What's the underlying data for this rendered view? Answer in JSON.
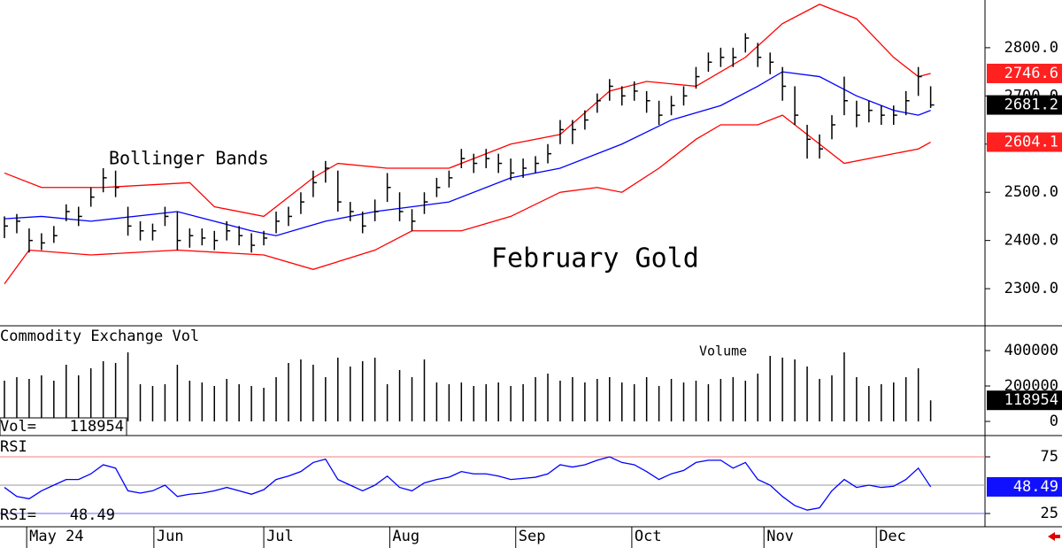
{
  "chart_data": [
    {
      "type": "ohlc",
      "title": "February Gold",
      "annotation": "Bollinger Bands",
      "x": [
        0,
        1,
        2,
        3,
        4,
        5,
        6,
        7,
        8,
        9,
        10,
        11,
        12,
        13,
        14,
        15,
        16,
        17,
        18,
        19,
        20,
        21,
        22,
        23,
        24,
        25,
        26,
        27,
        28,
        29,
        30,
        31,
        32,
        33,
        34,
        35,
        36,
        37,
        38,
        39,
        40,
        41,
        42,
        43,
        44,
        45,
        46,
        47,
        48,
        49,
        50,
        51,
        52,
        53,
        54,
        55,
        56,
        57,
        58,
        59,
        60,
        61,
        62,
        63,
        64,
        65,
        66,
        67,
        68,
        69,
        70,
        71,
        72,
        73,
        74,
        75
      ],
      "high": [
        2450,
        2455,
        2425,
        2415,
        2430,
        2475,
        2470,
        2510,
        2550,
        2545,
        2470,
        2440,
        2435,
        2470,
        2460,
        2425,
        2425,
        2420,
        2440,
        2430,
        2415,
        2420,
        2460,
        2470,
        2500,
        2545,
        2565,
        2545,
        2480,
        2460,
        2485,
        2540,
        2500,
        2465,
        2500,
        2530,
        2545,
        2590,
        2580,
        2590,
        2580,
        2570,
        2570,
        2575,
        2600,
        2650,
        2650,
        2670,
        2705,
        2735,
        2720,
        2730,
        2710,
        2690,
        2700,
        2720,
        2760,
        2790,
        2800,
        2800,
        2830,
        2810,
        2790,
        2760,
        2720,
        2640,
        2620,
        2660,
        2740,
        2690,
        2690,
        2680,
        2680,
        2710,
        2760,
        2720
      ],
      "low": [
        2405,
        2415,
        2375,
        2380,
        2395,
        2440,
        2430,
        2470,
        2500,
        2490,
        2410,
        2400,
        2400,
        2430,
        2380,
        2385,
        2390,
        2380,
        2400,
        2390,
        2375,
        2390,
        2415,
        2430,
        2455,
        2490,
        2520,
        2460,
        2440,
        2415,
        2440,
        2480,
        2440,
        2420,
        2455,
        2490,
        2510,
        2550,
        2540,
        2550,
        2540,
        2525,
        2530,
        2540,
        2560,
        2600,
        2600,
        2630,
        2665,
        2690,
        2680,
        2690,
        2665,
        2640,
        2660,
        2680,
        2715,
        2750,
        2760,
        2760,
        2790,
        2760,
        2745,
        2690,
        2640,
        2570,
        2570,
        2610,
        2660,
        2635,
        2645,
        2640,
        2640,
        2660,
        2700,
        2675
      ],
      "close": [
        2430,
        2440,
        2400,
        2395,
        2410,
        2460,
        2450,
        2490,
        2530,
        2510,
        2430,
        2420,
        2420,
        2450,
        2400,
        2410,
        2405,
        2400,
        2420,
        2410,
        2390,
        2405,
        2440,
        2450,
        2480,
        2520,
        2550,
        2480,
        2460,
        2430,
        2460,
        2510,
        2460,
        2440,
        2480,
        2510,
        2530,
        2570,
        2560,
        2570,
        2560,
        2540,
        2550,
        2560,
        2580,
        2630,
        2630,
        2650,
        2690,
        2720,
        2700,
        2710,
        2690,
        2660,
        2680,
        2700,
        2740,
        2770,
        2780,
        2780,
        2820,
        2780,
        2770,
        2720,
        2660,
        2610,
        2590,
        2640,
        2690,
        2660,
        2670,
        2660,
        2660,
        2690,
        2740,
        2681.2
      ],
      "color": "#000000",
      "series": [
        {
          "color": "#ff0000",
          "x": [
            0,
            3,
            8,
            15,
            17,
            21,
            25,
            27,
            31,
            36,
            41,
            45,
            49,
            52,
            56,
            60,
            63,
            66,
            69,
            72,
            74,
            75
          ],
          "values": [
            2540,
            2510,
            2510,
            2520,
            2470,
            2450,
            2530,
            2560,
            2550,
            2550,
            2600,
            2620,
            2710,
            2730,
            2720,
            2780,
            2850,
            2890,
            2860,
            2780,
            2740,
            2746.6
          ]
        },
        {
          "color": "#0000ff",
          "x": [
            0,
            3,
            7,
            14,
            20,
            22,
            26,
            30,
            36,
            41,
            45,
            50,
            54,
            58,
            61,
            63,
            66,
            69,
            72,
            74,
            75
          ],
          "values": [
            2445,
            2450,
            2440,
            2460,
            2420,
            2410,
            2440,
            2460,
            2480,
            2530,
            2550,
            2600,
            2650,
            2680,
            2720,
            2750,
            2740,
            2700,
            2670,
            2660,
            2670
          ]
        },
        {
          "color": "#ff0000",
          "x": [
            0,
            2,
            7,
            14,
            21,
            25,
            30,
            33,
            37,
            41,
            45,
            48,
            50,
            53,
            56,
            58,
            61,
            63,
            66,
            68,
            72,
            74,
            75
          ],
          "values": [
            2310,
            2380,
            2370,
            2380,
            2370,
            2340,
            2380,
            2420,
            2420,
            2450,
            2500,
            2510,
            2500,
            2550,
            2610,
            2640,
            2640,
            2660,
            2600,
            2560,
            2580,
            2590,
            2604.1
          ]
        }
      ],
      "xlim": [
        -0.36,
        79.4
      ],
      "ylim": [
        2223,
        2899
      ],
      "yticks": [
        {
          "value": 2800,
          "label": "2800.0"
        },
        {
          "value": 2700,
          "label": "2700.0"
        },
        {
          "value": 2600,
          "label": "2600.0"
        },
        {
          "value": 2500,
          "label": "2500.0"
        },
        {
          "value": 2400,
          "label": "2400.0"
        },
        {
          "value": 2300,
          "label": "2300.0"
        }
      ]
    },
    {
      "type": "bar",
      "title": "Commodity Exchange Vol",
      "annotation": "Volume",
      "readout_label": "Vol=",
      "color": "#000000",
      "values": [
        230000,
        250000,
        240000,
        260000,
        230000,
        320000,
        260000,
        300000,
        340000,
        330000,
        390000,
        210000,
        200000,
        210000,
        320000,
        230000,
        220000,
        200000,
        240000,
        210000,
        200000,
        190000,
        250000,
        330000,
        350000,
        320000,
        250000,
        360000,
        310000,
        340000,
        360000,
        210000,
        290000,
        250000,
        350000,
        220000,
        210000,
        220000,
        200000,
        210000,
        220000,
        200000,
        210000,
        250000,
        270000,
        230000,
        250000,
        220000,
        240000,
        250000,
        220000,
        210000,
        250000,
        200000,
        240000,
        220000,
        230000,
        210000,
        240000,
        250000,
        230000,
        270000,
        370000,
        360000,
        350000,
        310000,
        240000,
        260000,
        390000,
        250000,
        200000,
        210000,
        220000,
        250000,
        300000,
        118954
      ],
      "ylim": [
        -80000,
        530000
      ],
      "yticks": [
        400000,
        200000,
        0
      ]
    },
    {
      "type": "line",
      "title": "RSI",
      "readout_label": "RSI=",
      "color": "#0000ff",
      "values": [
        48,
        40,
        38,
        45,
        50,
        55,
        55,
        60,
        68,
        65,
        45,
        43,
        45,
        50,
        40,
        42,
        43,
        45,
        48,
        45,
        42,
        46,
        55,
        58,
        62,
        70,
        73,
        55,
        50,
        45,
        50,
        58,
        48,
        45,
        52,
        55,
        57,
        62,
        60,
        60,
        58,
        55,
        56,
        57,
        60,
        68,
        66,
        68,
        72,
        75,
        70,
        68,
        62,
        55,
        60,
        63,
        70,
        72,
        72,
        65,
        70,
        55,
        50,
        40,
        32,
        28,
        30,
        45,
        55,
        48,
        50,
        48,
        49,
        55,
        65,
        48.49
      ],
      "ylim": [
        13.3,
        92.2
      ],
      "yticks": [
        75,
        25
      ],
      "levels": [
        {
          "value": 75,
          "color": "#f08080"
        },
        {
          "value": 50,
          "color": "#999999"
        },
        {
          "value": 25,
          "color": "#6a6aff"
        }
      ],
      "xticks": [
        {
          "value": 1.8,
          "label": "May 24"
        },
        {
          "value": 12.1,
          "label": "Jun"
        },
        {
          "value": 21.0,
          "label": "Jul"
        },
        {
          "value": 31.2,
          "label": "Aug"
        },
        {
          "value": 41.4,
          "label": "Sep"
        },
        {
          "value": 50.8,
          "label": "Oct"
        },
        {
          "value": 61.5,
          "label": "Nov"
        },
        {
          "value": 70.6,
          "label": "Dec"
        }
      ]
    }
  ]
}
